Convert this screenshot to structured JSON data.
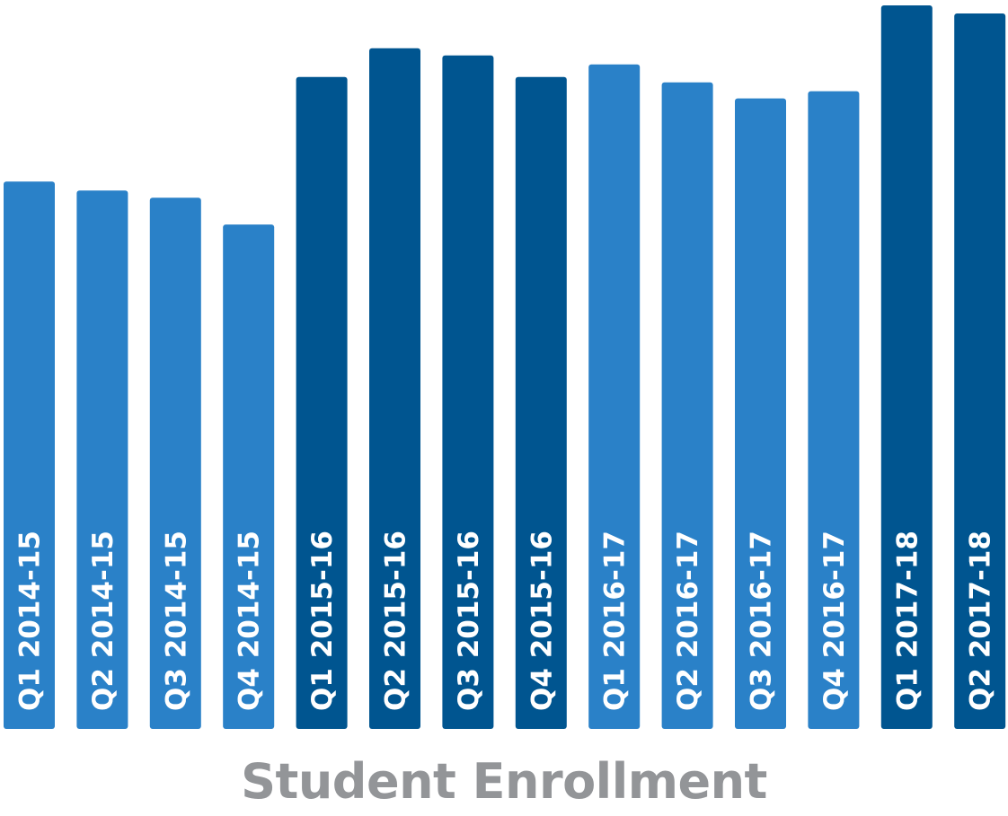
{
  "chart_data": {
    "type": "bar",
    "title": "Student Enrollment",
    "xlabel": "",
    "ylabel": "",
    "categories": [
      "Q1 2014-15",
      "Q2 2014-15",
      "Q3 2014-15",
      "Q4 2014-15",
      "Q1 2015-16",
      "Q2 2015-16",
      "Q3 2015-16",
      "Q4 2015-16",
      "Q1 2016-17",
      "Q2 2016-17",
      "Q3 2016-17",
      "Q4 2016-17",
      "Q1 2017-18",
      "Q2 2017-18"
    ],
    "values": [
      612,
      602,
      594,
      564,
      729,
      761,
      753,
      729,
      743,
      723,
      705,
      713,
      809,
      800
    ],
    "ylim": [
      0,
      812
    ],
    "grid": false,
    "legend": "none",
    "colors": {
      "light": "#2a81c8",
      "dark": "#005590",
      "title": "#939598",
      "label": "#ffffff"
    },
    "bar_colors": [
      "light",
      "light",
      "light",
      "light",
      "dark",
      "dark",
      "dark",
      "dark",
      "light",
      "light",
      "light",
      "light",
      "dark",
      "dark"
    ]
  }
}
